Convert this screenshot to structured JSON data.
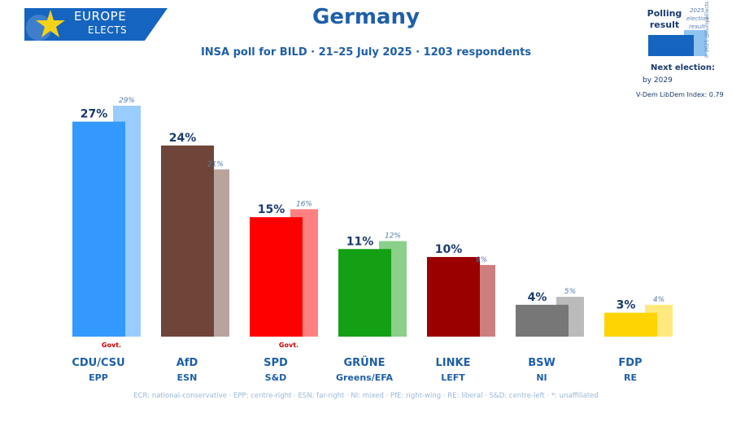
{
  "logo": {
    "line1": "EUROPE",
    "line2": "ELECTS"
  },
  "title": "Germany",
  "subtitle": "INSA poll for BILD · 21–25 July 2025 · 1203 respondents",
  "legend": {
    "poll_label": "Polling result",
    "election_label": "2025 election result",
    "copyright": "© 2025 @EuropeElects",
    "next_election_label": "Next election:",
    "next_election_value": "by 2029",
    "vdem": "V-Dem LibDem Index: 0.79",
    "poll_color": "#1565c0",
    "election_color": "#90c4f0"
  },
  "footer": "ECR: national-conservative · EPP: centre-right · ESN: far-right · NI: mixed · PfE: right-wing · RE: liberal · S&D: centre-left · *: unaffiliated",
  "chart_data": {
    "type": "bar",
    "unit": "%",
    "categories": [
      "CDU/CSU",
      "AfD",
      "SPD",
      "GRÜNE",
      "LINKE",
      "BSW",
      "FDP"
    ],
    "groups": [
      "EPP",
      "ESN",
      "S&D",
      "Greens/EFA",
      "LEFT",
      "NI",
      "RE"
    ],
    "govt": [
      true,
      false,
      true,
      false,
      false,
      false,
      false
    ],
    "govt_label": "Govt.",
    "series": [
      {
        "name": "Polling result",
        "values": [
          27,
          24,
          15,
          11,
          10,
          4,
          3
        ]
      },
      {
        "name": "2025 election result",
        "values": [
          29,
          21,
          16,
          12,
          9,
          5,
          4
        ]
      }
    ],
    "poll_labels": [
      "27%",
      "24%",
      "15%",
      "11%",
      "10%",
      "4%",
      "3%"
    ],
    "election_labels": [
      "29%",
      "21%",
      "16%",
      "12%",
      "9%",
      "5%",
      "4%"
    ],
    "colors": [
      "#3399ff",
      "#6e4538",
      "#ff0000",
      "#14a014",
      "#9b0000",
      "#777777",
      "#ffd400"
    ],
    "light_colors": [
      "#99ccff",
      "#b8a39d",
      "#ff8080",
      "#8ad08a",
      "#cd7f7f",
      "#bbbbbb",
      "#ffe97f"
    ],
    "ylim": [
      0,
      29
    ]
  }
}
